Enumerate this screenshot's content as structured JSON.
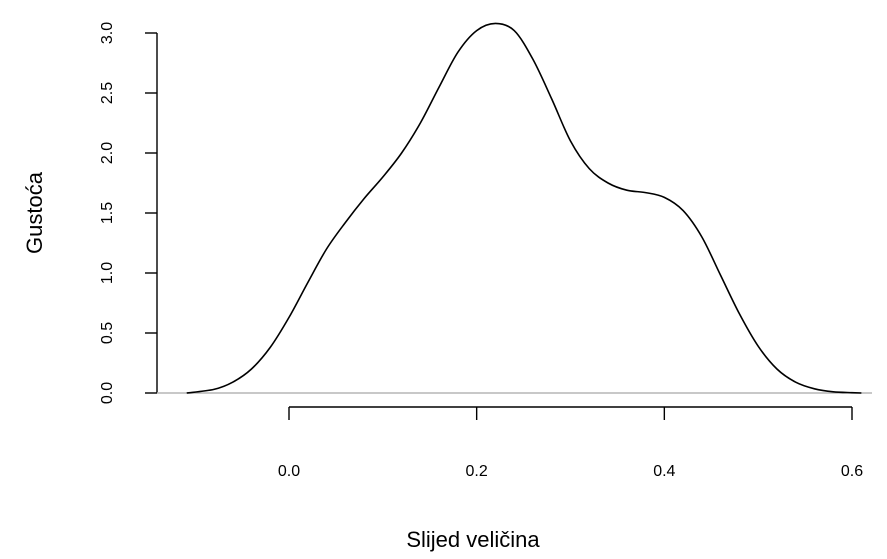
{
  "chart_data": {
    "type": "line",
    "xlabel": "Slijed veličina",
    "ylabel": "Gustoća",
    "x_ticks": [
      0.0,
      0.2,
      0.4,
      0.6
    ],
    "x_tick_labels": [
      "0.0",
      "0.2",
      "0.4",
      "0.6"
    ],
    "y_ticks": [
      0.0,
      0.5,
      1.0,
      1.5,
      2.0,
      2.5,
      3.0
    ],
    "y_tick_labels": [
      "0.0",
      "0.5",
      "1.0",
      "1.5",
      "2.0",
      "2.5",
      "3.0"
    ],
    "xlim": [
      0.0,
      0.6
    ],
    "ylim": [
      0.0,
      3.0
    ],
    "grid": false,
    "baseline_color": "#b5b5b5",
    "line_color": "#000000",
    "series": [
      {
        "x": [
          -0.109,
          -0.08,
          -0.06,
          -0.04,
          -0.02,
          0.0,
          0.02,
          0.04,
          0.06,
          0.08,
          0.1,
          0.12,
          0.14,
          0.16,
          0.18,
          0.2,
          0.22,
          0.24,
          0.26,
          0.28,
          0.3,
          0.32,
          0.34,
          0.36,
          0.38,
          0.4,
          0.42,
          0.44,
          0.46,
          0.48,
          0.5,
          0.52,
          0.54,
          0.56,
          0.58,
          0.6,
          0.61
        ],
        "y": [
          0.0,
          0.03,
          0.09,
          0.2,
          0.38,
          0.63,
          0.92,
          1.2,
          1.42,
          1.62,
          1.8,
          2.0,
          2.25,
          2.55,
          2.84,
          3.02,
          3.08,
          3.02,
          2.78,
          2.45,
          2.1,
          1.87,
          1.75,
          1.69,
          1.67,
          1.63,
          1.52,
          1.3,
          0.98,
          0.66,
          0.39,
          0.2,
          0.09,
          0.035,
          0.01,
          0.003,
          0.0
        ]
      }
    ]
  }
}
